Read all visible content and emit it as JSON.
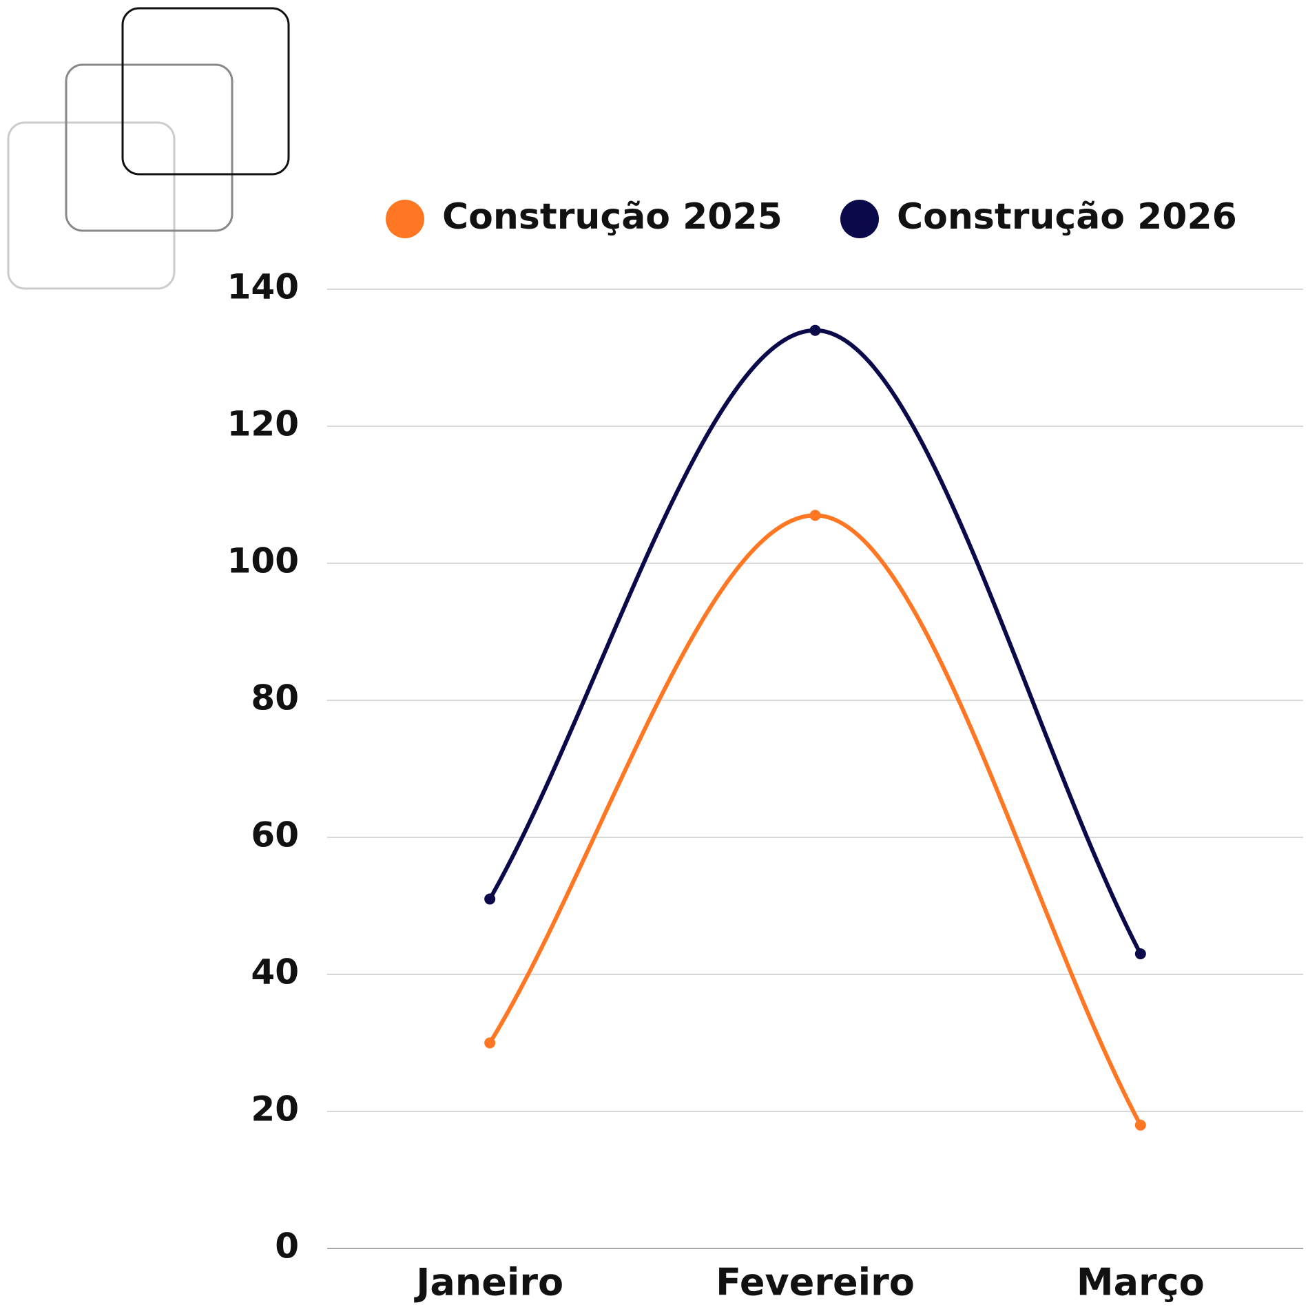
{
  "chart_data": {
    "type": "line",
    "categories": [
      "Janeiro",
      "Fevereiro",
      "Março"
    ],
    "series": [
      {
        "name": "Construção 2025",
        "color": "#ff7722",
        "values": [
          30,
          107,
          18
        ]
      },
      {
        "name": "Construção 2026",
        "color": "#0a0a4a",
        "values": [
          51,
          134,
          43
        ]
      }
    ],
    "ylim": [
      0,
      140
    ],
    "yticks": [
      0,
      20,
      40,
      60,
      80,
      100,
      120,
      140
    ],
    "grid": true,
    "legend": "top"
  }
}
